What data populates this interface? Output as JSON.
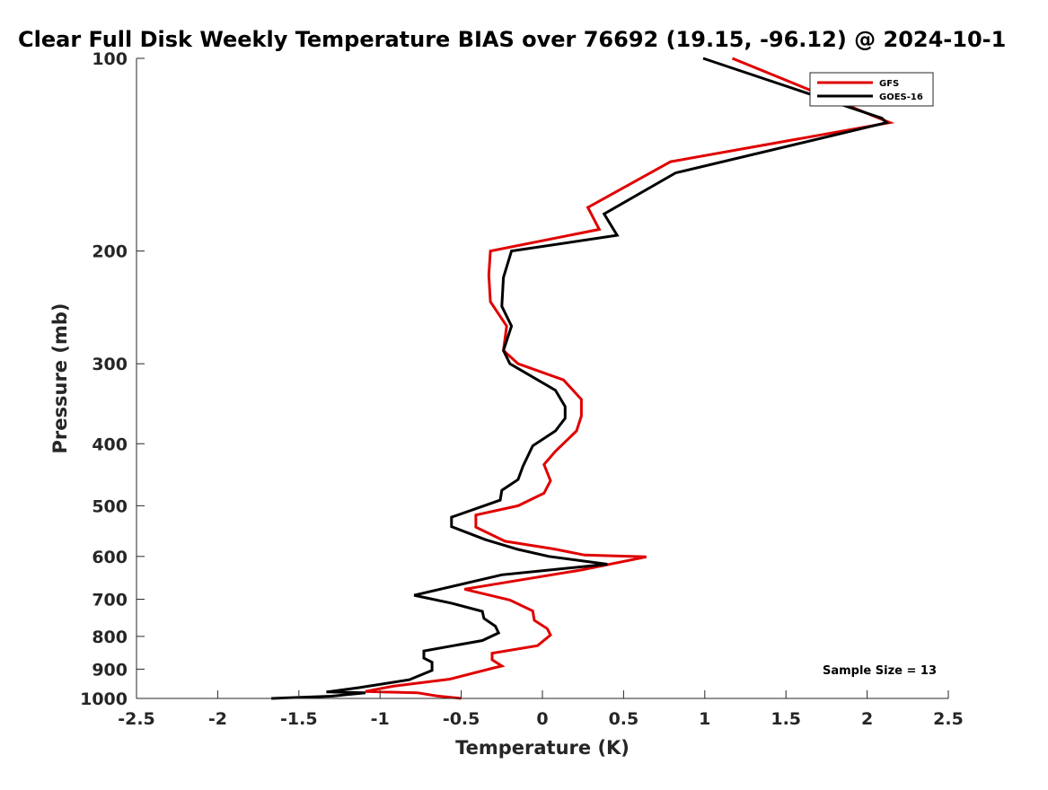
{
  "chart_data": {
    "type": "line",
    "title": "Clear Full Disk Weekly Temperature BIAS over 76692 (19.15, -96.12) @ 2024-10-1",
    "xlabel": "Temperature (K)",
    "ylabel": "Pressure (mb)",
    "xlim": [
      -2.5,
      2.5
    ],
    "ylim": [
      100,
      1000
    ],
    "y_scale": "log",
    "y_reversed": true,
    "x_ticks": [
      -2.5,
      -2,
      -1.5,
      -1,
      -0.5,
      0,
      0.5,
      1,
      1.5,
      2,
      2.5
    ],
    "x_tick_labels": [
      "-2.5",
      "-2",
      "-1.5",
      "-1",
      "-0.5",
      "0",
      "0.5",
      "1",
      "1.5",
      "2",
      "2.5"
    ],
    "y_ticks": [
      100,
      200,
      300,
      400,
      500,
      600,
      700,
      800,
      900,
      1000
    ],
    "y_tick_labels": [
      "100",
      "200",
      "300",
      "400",
      "500",
      "600",
      "700",
      "800",
      "900",
      "1000"
    ],
    "grid": false,
    "legend_position": "top-right",
    "annotation": "Sample Size = 13",
    "series": [
      {
        "name": "GFS",
        "color": "#e00000",
        "points": [
          [
            1.17,
            100
          ],
          [
            2.14,
            126
          ],
          [
            0.79,
            145
          ],
          [
            0.28,
            171
          ],
          [
            0.35,
            185
          ],
          [
            -0.32,
            200
          ],
          [
            -0.33,
            218
          ],
          [
            -0.32,
            240
          ],
          [
            -0.22,
            262
          ],
          [
            -0.24,
            286
          ],
          [
            -0.15,
            300
          ],
          [
            0.13,
            318
          ],
          [
            0.24,
            341
          ],
          [
            0.24,
            362
          ],
          [
            0.21,
            382
          ],
          [
            0.08,
            411
          ],
          [
            0.01,
            431
          ],
          [
            0.05,
            457
          ],
          [
            0.01,
            478
          ],
          [
            -0.15,
            500
          ],
          [
            -0.41,
            517
          ],
          [
            -0.41,
            540
          ],
          [
            -0.23,
            568
          ],
          [
            0.07,
            584
          ],
          [
            0.26,
            597
          ],
          [
            0.64,
            601
          ],
          [
            0.24,
            630
          ],
          [
            -0.48,
            675
          ],
          [
            -0.2,
            702
          ],
          [
            -0.06,
            730
          ],
          [
            -0.05,
            755
          ],
          [
            0.03,
            778
          ],
          [
            0.05,
            796
          ],
          [
            -0.03,
            827
          ],
          [
            -0.31,
            850
          ],
          [
            -0.31,
            870
          ],
          [
            -0.25,
            890
          ],
          [
            -0.3,
            896
          ],
          [
            -0.57,
            933
          ],
          [
            -0.92,
            957
          ],
          [
            -1.09,
            975
          ],
          [
            -0.77,
            980
          ],
          [
            -0.65,
            991
          ],
          [
            -0.5,
            1000
          ]
        ]
      },
      {
        "name": "GOES-16",
        "color": "#000000",
        "points": [
          [
            0.99,
            100
          ],
          [
            2.09,
            124
          ],
          [
            2.12,
            126
          ],
          [
            0.82,
            151
          ],
          [
            0.38,
            175
          ],
          [
            0.46,
            189
          ],
          [
            -0.19,
            200
          ],
          [
            -0.24,
            220
          ],
          [
            -0.25,
            244
          ],
          [
            -0.19,
            262
          ],
          [
            -0.24,
            286
          ],
          [
            -0.2,
            300
          ],
          [
            0.08,
            330
          ],
          [
            0.14,
            350
          ],
          [
            0.14,
            365
          ],
          [
            0.08,
            382
          ],
          [
            -0.06,
            403
          ],
          [
            -0.12,
            434
          ],
          [
            -0.15,
            455
          ],
          [
            -0.25,
            473
          ],
          [
            -0.26,
            490
          ],
          [
            -0.56,
            521
          ],
          [
            -0.56,
            539
          ],
          [
            -0.35,
            565
          ],
          [
            -0.15,
            585
          ],
          [
            0.04,
            600
          ],
          [
            0.4,
            617
          ],
          [
            -0.25,
            641
          ],
          [
            -0.79,
            690
          ],
          [
            -0.56,
            710
          ],
          [
            -0.37,
            731
          ],
          [
            -0.36,
            750
          ],
          [
            -0.29,
            771
          ],
          [
            -0.27,
            790
          ],
          [
            -0.37,
            812
          ],
          [
            -0.73,
            843
          ],
          [
            -0.73,
            865
          ],
          [
            -0.68,
            878
          ],
          [
            -0.68,
            904
          ],
          [
            -0.82,
            935
          ],
          [
            -1.13,
            962
          ],
          [
            -1.33,
            977
          ],
          [
            -1.09,
            980
          ],
          [
            -1.3,
            992
          ],
          [
            -1.67,
            1000
          ]
        ]
      }
    ]
  }
}
